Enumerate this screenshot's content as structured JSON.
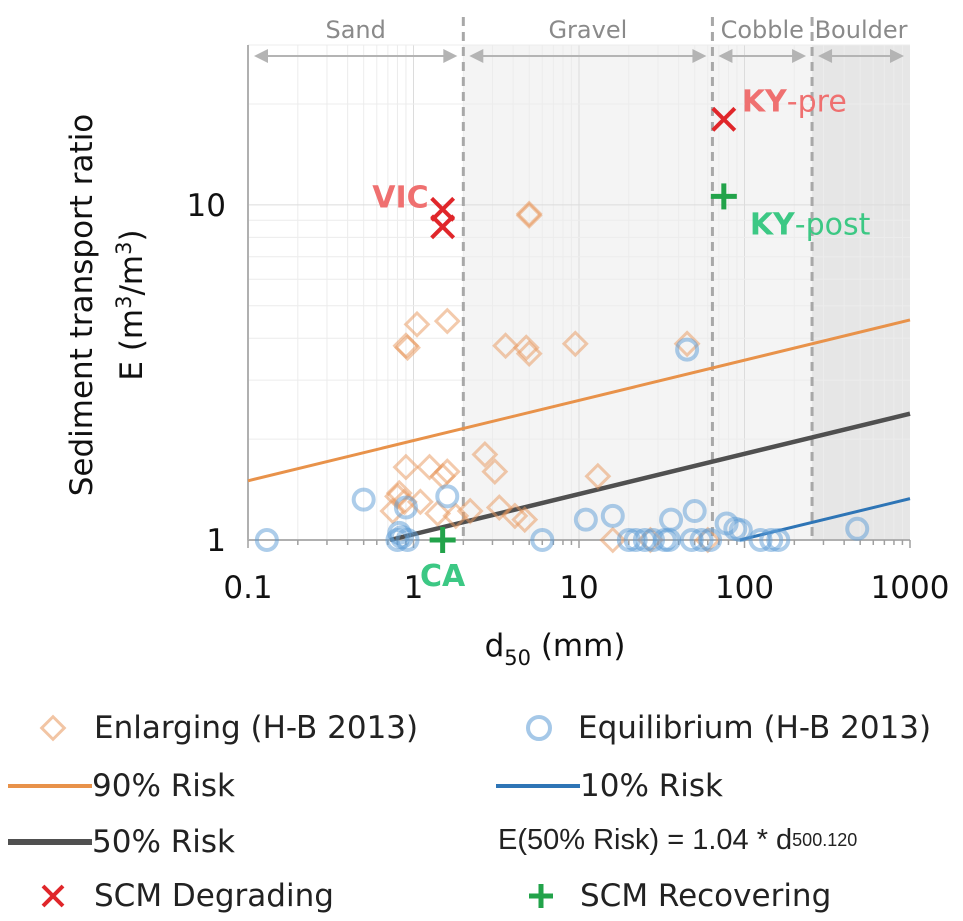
{
  "chart_data": {
    "type": "scatter",
    "xlabel_main": "d",
    "xlabel_sub": "50",
    "xlabel_tail": " (mm)",
    "ylabel_line1": "Sediment transport ratio",
    "ylabel_line2_pre": "E (m",
    "ylabel_sup1": "3",
    "ylabel_mid": "/m",
    "ylabel_sup2": "3",
    "ylabel_post": ")",
    "xscale": "log",
    "yscale": "log",
    "xlim": [
      0.1,
      1000
    ],
    "ylim": [
      1,
      30
    ],
    "xticks": [
      0.1,
      1,
      10,
      100,
      1000
    ],
    "xtick_labels": [
      "0.1",
      "1",
      "10",
      "100",
      "1000"
    ],
    "yticks": [
      1,
      10
    ],
    "ytick_labels": [
      "1",
      "10"
    ],
    "grid": true,
    "zones": [
      {
        "name": "Sand",
        "from": 0.1,
        "to": 2,
        "shade": "#ffffff"
      },
      {
        "name": "Gravel",
        "from": 2,
        "to": 64,
        "shade": "#f4f4f4"
      },
      {
        "name": "Cobble",
        "from": 64,
        "to": 256,
        "shade": "#f4f4f4"
      },
      {
        "name": "Boulder",
        "from": 256,
        "to": 1000,
        "shade": "#e6e6e6"
      }
    ],
    "boundaries": [
      2,
      64,
      256
    ],
    "series": [
      {
        "name": "Enlarging (H-B 2013)",
        "marker": "diamond",
        "color": "#e8955a",
        "points": [
          [
            0.75,
            1.22
          ],
          [
            0.8,
            1.35
          ],
          [
            0.82,
            1.38
          ],
          [
            0.88,
            1.3
          ],
          [
            0.9,
            1.65
          ],
          [
            0.9,
            3.8
          ],
          [
            0.92,
            3.75
          ],
          [
            1.05,
            4.4
          ],
          [
            1.1,
            1.3
          ],
          [
            1.25,
            1.65
          ],
          [
            1.4,
            1.2
          ],
          [
            1.5,
            1.55
          ],
          [
            1.6,
            4.5
          ],
          [
            1.6,
            1.6
          ],
          [
            1.8,
            1.18
          ],
          [
            2.2,
            1.22
          ],
          [
            2.7,
            1.8
          ],
          [
            3.1,
            1.6
          ],
          [
            3.3,
            1.25
          ],
          [
            3.6,
            3.8
          ],
          [
            4.1,
            1.18
          ],
          [
            4.7,
            1.15
          ],
          [
            4.8,
            3.75
          ],
          [
            5.0,
            3.6
          ],
          [
            5.0,
            9.3
          ],
          [
            5.0,
            9.4
          ],
          [
            9.5,
            3.85
          ],
          [
            13,
            1.55
          ],
          [
            16,
            1.0
          ],
          [
            27,
            1.0
          ],
          [
            45,
            3.85
          ],
          [
            60,
            1.0
          ]
        ]
      },
      {
        "name": "Equilibrium (H-B 2013)",
        "marker": "circle",
        "color": "#5b9bd5",
        "points": [
          [
            0.13,
            1.0
          ],
          [
            0.5,
            1.32
          ],
          [
            0.8,
            1.0
          ],
          [
            0.82,
            1.05
          ],
          [
            0.85,
            1.02
          ],
          [
            0.9,
            1.25
          ],
          [
            0.92,
            1.0
          ],
          [
            1.6,
            1.35
          ],
          [
            6,
            1.0
          ],
          [
            11,
            1.15
          ],
          [
            16,
            1.18
          ],
          [
            20,
            1.0
          ],
          [
            22,
            1.0
          ],
          [
            25,
            1.0
          ],
          [
            28,
            1.0
          ],
          [
            33,
            1.0
          ],
          [
            35,
            1.0
          ],
          [
            36,
            1.15
          ],
          [
            45,
            3.7
          ],
          [
            48,
            1.0
          ],
          [
            50,
            1.22
          ],
          [
            55,
            1.0
          ],
          [
            62,
            1.0
          ],
          [
            78,
            1.12
          ],
          [
            88,
            1.08
          ],
          [
            95,
            1.07
          ],
          [
            125,
            1.0
          ],
          [
            145,
            1.0
          ],
          [
            160,
            1.0
          ],
          [
            480,
            1.08
          ]
        ]
      },
      {
        "name": "SCM Degrading",
        "marker": "x",
        "color": "#e0262a",
        "points": [
          [
            1.5,
            9.7
          ],
          [
            1.5,
            8.6
          ],
          [
            75,
            18
          ]
        ]
      },
      {
        "name": "SCM Recovering",
        "marker": "plus",
        "color": "#22a34a",
        "points": [
          [
            1.5,
            1.0
          ],
          [
            75,
            10.6
          ]
        ]
      }
    ],
    "lines": [
      {
        "name": "90% Risk",
        "color": "#e8924a",
        "coef": 1.98,
        "exp": 0.12
      },
      {
        "name": "50% Risk",
        "color": "#505050",
        "coef": 1.04,
        "exp": 0.12
      },
      {
        "name": "10% Risk",
        "color": "#2e75b6",
        "coef": 0.58,
        "exp": 0.12
      }
    ],
    "annotations": [
      {
        "bold": "VIC",
        "rest": "",
        "x": 1.5,
        "y": 9.7,
        "color": "#ef7070",
        "place": "left"
      },
      {
        "bold": "KY",
        "rest": "-pre",
        "x": 75,
        "y": 18,
        "color": "#ef7070",
        "place": "right"
      },
      {
        "bold": "KY",
        "rest": "-post",
        "x": 75,
        "y": 10.6,
        "color": "#3cc884",
        "place": "below-right"
      },
      {
        "bold": "CA",
        "rest": "",
        "x": 1.5,
        "y": 1.0,
        "color": "#3cc884",
        "place": "below"
      }
    ]
  },
  "legend": {
    "enlarging": "Enlarging (H-B 2013)",
    "equilibrium": "Equilibrium (H-B 2013)",
    "risk90": "90% Risk",
    "risk10": "10% Risk",
    "risk50": "50% Risk",
    "formula_pre": "E(50% Risk) = 1.04 * d",
    "formula_sub": "50",
    "formula_sup": "0.120",
    "degrading": "SCM Degrading",
    "recovering": "SCM Recovering"
  },
  "colors": {
    "enlarging": "#e8955a",
    "equilibrium": "#5b9bd5",
    "risk90": "#e8924a",
    "risk50": "#505050",
    "risk10": "#2e75b6",
    "degrading": "#e0262a",
    "recovering": "#22a34a"
  },
  "icons": {
    "enlarging": "diamond-marker-icon",
    "equilibrium": "circle-marker-icon",
    "degrading": "x-marker-icon",
    "recovering": "plus-marker-icon"
  }
}
